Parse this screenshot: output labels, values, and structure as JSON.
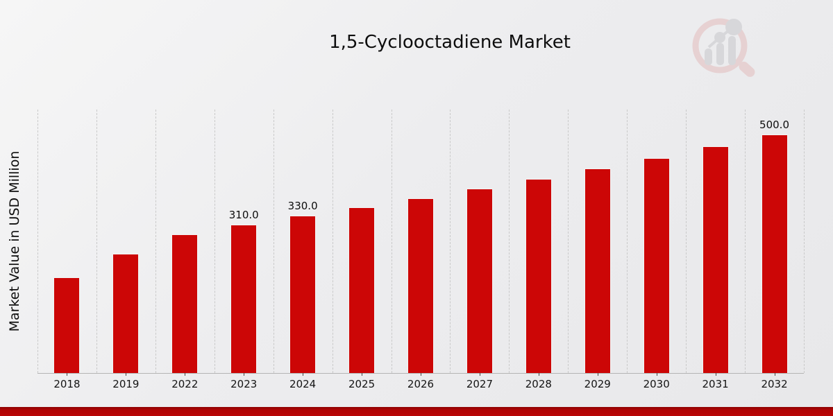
{
  "page": {
    "title": "1,5-Cyclooctadiene Market",
    "y_axis_label": "Market Value in USD Million"
  },
  "branding": {
    "logo_icon": "magnifier-bar-chart-logo",
    "accent_red": "#cc0606",
    "footer_band_color": "#b10404"
  },
  "chart_data": {
    "type": "bar",
    "title": "1,5-Cyclooctadiene Market",
    "xlabel": "",
    "ylabel": "Market Value in USD Million",
    "categories": [
      "2018",
      "2019",
      "2022",
      "2023",
      "2024",
      "2025",
      "2026",
      "2027",
      "2028",
      "2029",
      "2030",
      "2031",
      "2032"
    ],
    "values": [
      200,
      250,
      290,
      310,
      330,
      347.6,
      366.1,
      385.7,
      406.2,
      427.8,
      450.6,
      474.7,
      500
    ],
    "data_labels": [
      "",
      "",
      "",
      "310.0",
      "330.0",
      "",
      "",
      "",
      "",
      "",
      "",
      "",
      "500.0"
    ],
    "labeled_points": {
      "2023": 310.0,
      "2024": 330.0,
      "2032": 500.0
    },
    "bar_color": "#cc0606",
    "ylim": [
      0,
      553
    ],
    "grid": "vertical-dashed",
    "legend": "none"
  }
}
